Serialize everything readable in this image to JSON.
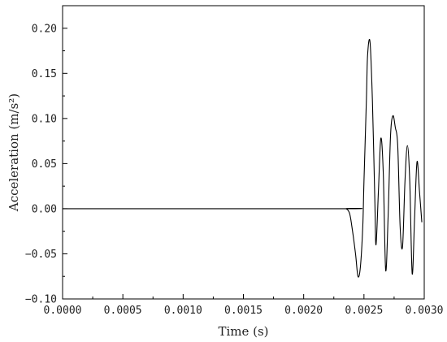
{
  "chart_data": {
    "type": "line",
    "title": "",
    "xlabel": "Time (s)",
    "ylabel": "Acceleration (m/s²)",
    "xlim": [
      0,
      0.003
    ],
    "ylim": [
      -0.1,
      0.225
    ],
    "grid": false,
    "x_ticks": [
      0,
      0.0005,
      0.001,
      0.0015,
      0.002,
      0.0025,
      0.003
    ],
    "x_tick_labels": [
      "0.0000",
      "0.0005",
      "0.0010",
      "0.0015",
      "0.0020",
      "0.0025",
      "0.0030"
    ],
    "y_ticks": [
      -0.1,
      -0.05,
      0,
      0.05,
      0.1,
      0.15,
      0.2
    ],
    "y_tick_labels": [
      "−0.10",
      "−0.05",
      "0.00",
      "0.05",
      "0.10",
      "0.15",
      "0.20"
    ],
    "series": [
      {
        "color": "#000000",
        "x": [
          0,
          0.0023,
          0.00235,
          0.00238,
          0.0024,
          0.00243,
          0.00245,
          0.00247,
          0.00249,
          0.0025,
          0.00252,
          0.00253,
          0.00255,
          0.00257,
          0.00259,
          0.0026,
          0.00262,
          0.00264,
          0.00266,
          0.00268,
          0.0027,
          0.00272,
          0.00274,
          0.00276,
          0.00278,
          0.0028,
          0.00282,
          0.00284,
          0.00286,
          0.00288,
          0.0029,
          0.00292,
          0.00294,
          0.00296,
          0.00298
        ],
        "y": [
          0,
          0,
          0,
          -0.005,
          -0.02,
          -0.05,
          -0.075,
          -0.065,
          -0.02,
          0.03,
          0.12,
          0.17,
          0.185,
          0.12,
          0.01,
          -0.04,
          0.02,
          0.078,
          0.04,
          -0.068,
          -0.01,
          0.08,
          0.103,
          0.09,
          0.07,
          -0.02,
          -0.042,
          0.03,
          0.07,
          0.03,
          -0.072,
          -0.01,
          0.052,
          0.02,
          -0.015
        ]
      }
    ]
  }
}
